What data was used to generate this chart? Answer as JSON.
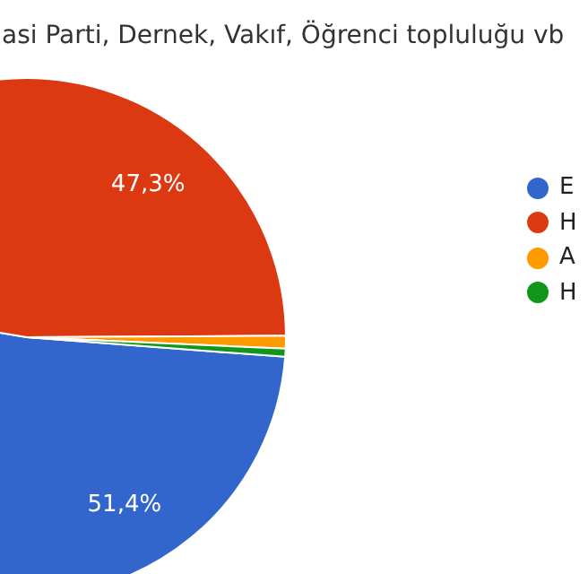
{
  "chart_data": {
    "type": "pie",
    "title": "asi Parti, Dernek, Vakıf, Öğrenci topluluğu vb",
    "categories": [
      "E",
      "H",
      "A",
      "H"
    ],
    "values": [
      51.4,
      47.3,
      0.8,
      0.5
    ],
    "colors": [
      "#3366cc",
      "#dc3912",
      "#ff9900",
      "#109618"
    ],
    "value_labels": [
      "51,4%",
      "47,3%",
      null,
      null
    ],
    "legend": "right"
  }
}
